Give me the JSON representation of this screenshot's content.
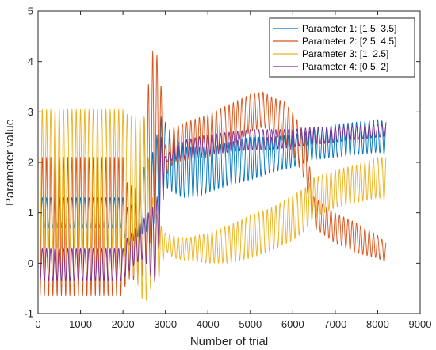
{
  "chart_data": {
    "type": "line",
    "title": "",
    "xlabel": "Number of trial",
    "ylabel": "Parameter value",
    "xlim": [
      0,
      9000
    ],
    "ylim": [
      -1,
      5
    ],
    "xticks": [
      0,
      1000,
      2000,
      3000,
      4000,
      5000,
      6000,
      7000,
      8000,
      9000
    ],
    "yticks": [
      -1,
      0,
      1,
      2,
      3,
      4,
      5
    ],
    "grid": false,
    "legend_position": "top-right",
    "oscillation_period_trials": 100,
    "series": [
      {
        "name": "Parameter 1: [1.5, 3.5]",
        "color": "#0072BD",
        "envelope_x": [
          50,
          1000,
          2000,
          2100,
          2300,
          2500,
          2700,
          2900,
          3000,
          3200,
          3400,
          3500,
          3700,
          4000,
          4500,
          5000,
          5500,
          6000,
          6300,
          6500,
          7000,
          7500,
          8000,
          8200
        ],
        "upper": [
          1.3,
          1.3,
          1.3,
          1.1,
          1.2,
          1.9,
          2.2,
          2.9,
          2.8,
          2.5,
          2.35,
          2.3,
          2.3,
          2.3,
          2.4,
          2.5,
          2.5,
          2.55,
          2.6,
          2.65,
          2.75,
          2.8,
          2.85,
          2.8
        ],
        "lower": [
          0.7,
          0.7,
          0.7,
          0.3,
          0.5,
          0.6,
          0.7,
          1.0,
          1.5,
          1.4,
          1.3,
          1.3,
          1.3,
          1.4,
          1.55,
          1.65,
          1.8,
          1.9,
          2.0,
          2.05,
          2.1,
          2.15,
          2.2,
          2.15
        ]
      },
      {
        "name": "Parameter 2: [2.5, 4.5]",
        "color": "#D95319",
        "envelope_x": [
          50,
          1000,
          2000,
          2100,
          2300,
          2500,
          2700,
          2850,
          3000,
          3200,
          3500,
          4000,
          4500,
          5000,
          5300,
          5500,
          5800,
          6000,
          6200,
          6300,
          6500,
          7000,
          7500,
          8000,
          8200
        ],
        "upper": [
          2.1,
          2.1,
          2.1,
          1.6,
          1.5,
          2.9,
          4.2,
          4.1,
          2.3,
          2.7,
          2.8,
          2.95,
          3.15,
          3.35,
          3.4,
          3.3,
          3.2,
          3.0,
          2.7,
          2.5,
          1.3,
          1.0,
          0.8,
          0.55,
          0.4
        ],
        "lower": [
          -0.65,
          -0.65,
          -0.65,
          -0.3,
          -0.35,
          -0.2,
          0.6,
          1.5,
          1.7,
          2.0,
          2.05,
          2.1,
          2.3,
          2.6,
          2.7,
          2.6,
          2.4,
          2.2,
          1.8,
          1.6,
          0.7,
          0.4,
          0.2,
          0.1,
          0.0
        ]
      },
      {
        "name": "Parameter 3: [1, 2.5]",
        "color": "#EDB120",
        "envelope_x": [
          50,
          1000,
          2000,
          2100,
          2300,
          2500,
          2700,
          2850,
          3000,
          3200,
          3500,
          4000,
          4500,
          5000,
          5500,
          6000,
          6300,
          6500,
          7000,
          7500,
          8000,
          8200
        ],
        "upper": [
          3.05,
          3.05,
          3.05,
          2.95,
          2.9,
          2.9,
          1.3,
          0.8,
          0.6,
          0.55,
          0.5,
          0.6,
          0.75,
          0.95,
          1.1,
          1.35,
          1.5,
          1.7,
          1.85,
          1.95,
          2.1,
          2.1
        ],
        "lower": [
          0.3,
          0.3,
          0.3,
          -0.05,
          -0.3,
          -0.85,
          -0.4,
          -0.3,
          0.25,
          0.1,
          0.05,
          0.0,
          0.0,
          0.1,
          0.25,
          0.45,
          0.65,
          0.9,
          1.1,
          1.2,
          1.3,
          1.25
        ]
      },
      {
        "name": "Parameter 4: [0.5, 2]",
        "color": "#7E2F8E",
        "envelope_x": [
          50,
          1000,
          2000,
          2100,
          2300,
          2500,
          2700,
          2800,
          2900,
          3000,
          3200,
          3500,
          4000,
          4500,
          5000,
          5500,
          6000,
          6500,
          7000,
          7500,
          8000,
          8200
        ],
        "upper": [
          0.3,
          0.3,
          0.3,
          0.5,
          0.7,
          0.9,
          1.1,
          1.3,
          2.5,
          2.1,
          2.3,
          2.45,
          2.55,
          2.6,
          2.65,
          2.65,
          2.65,
          2.7,
          2.7,
          2.72,
          2.75,
          2.75
        ],
        "lower": [
          -0.35,
          -0.35,
          -0.35,
          -0.2,
          0.0,
          0.1,
          -0.35,
          -0.4,
          1.0,
          2.0,
          2.05,
          2.1,
          2.15,
          2.2,
          2.25,
          2.25,
          2.3,
          2.35,
          2.4,
          2.45,
          2.5,
          2.5
        ]
      }
    ]
  }
}
